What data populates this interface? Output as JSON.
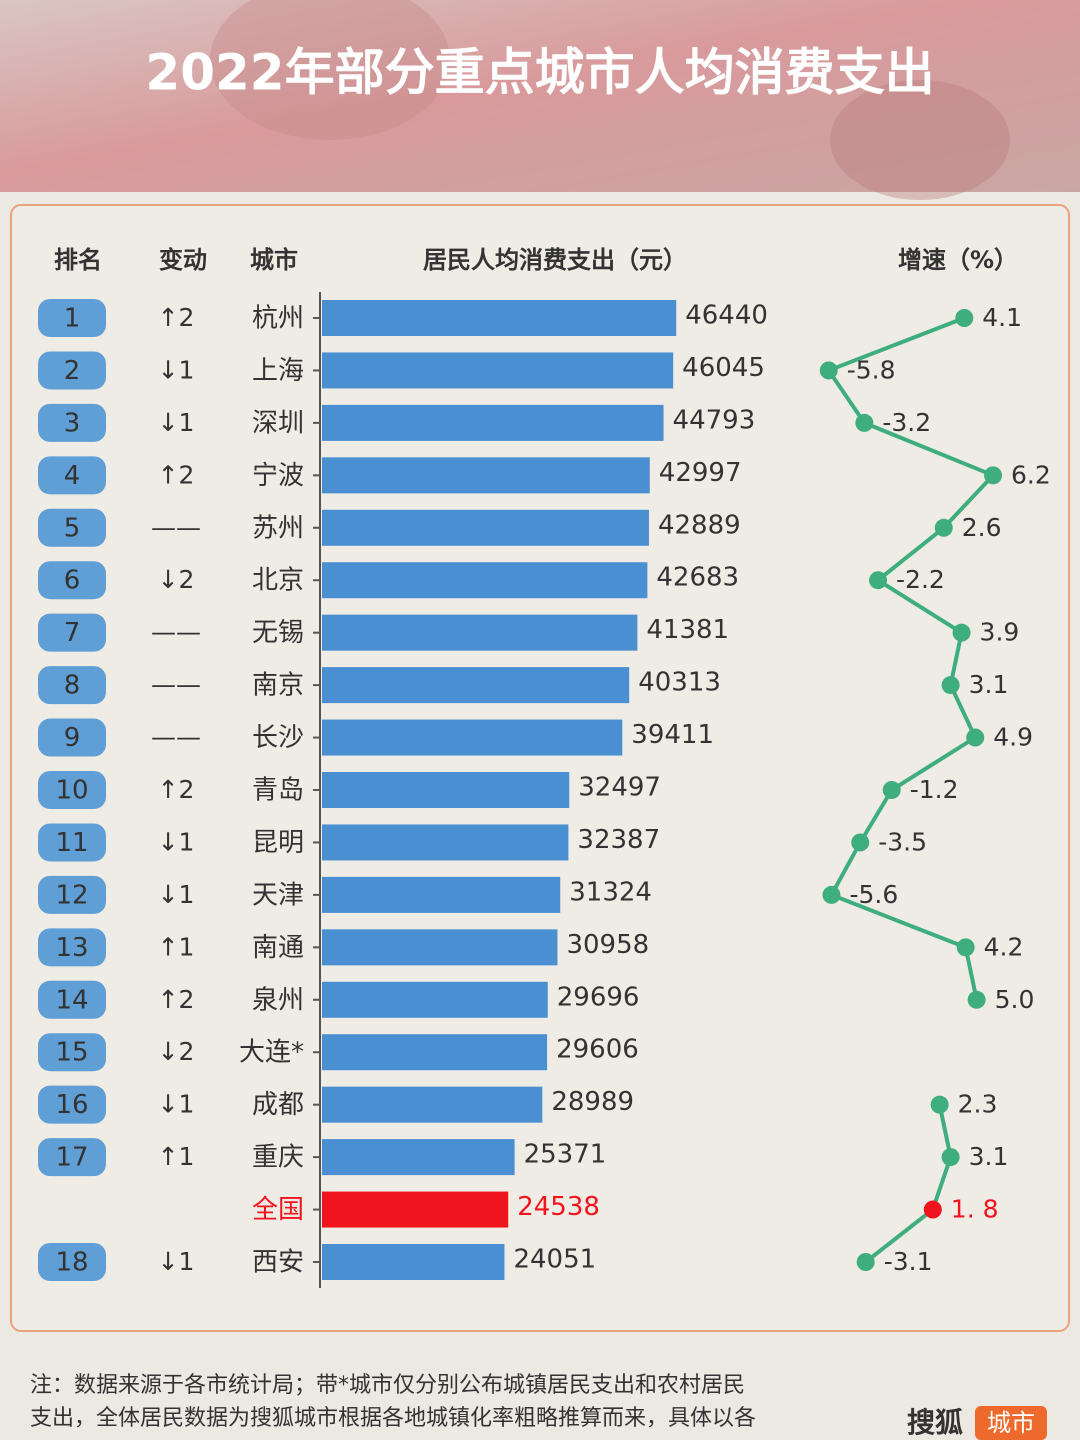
{
  "title": "2022年部分重点城市人均消费支出",
  "headers": [
    "排名",
    "变动",
    "城市",
    "居民人均消费支出（元）",
    "增速（%）"
  ],
  "bar_color": "#4a8fd2",
  "highlight_color": "#f0141e",
  "line_color": "#3fae7e",
  "rank_color": "#5f9fd6",
  "value_xlim": [
    0,
    50000
  ],
  "growth_xlim": [
    -6,
    7
  ],
  "rows": [
    {
      "rank": "1",
      "change": "↑2",
      "city": "杭州",
      "value": 46440,
      "growth": 4.1
    },
    {
      "rank": "2",
      "change": "↓1",
      "city": "上海",
      "value": 46045,
      "growth": -5.8
    },
    {
      "rank": "3",
      "change": "↓1",
      "city": "深圳",
      "value": 44793,
      "growth": -3.2
    },
    {
      "rank": "4",
      "change": "↑2",
      "city": "宁波",
      "value": 42997,
      "growth": 6.2
    },
    {
      "rank": "5",
      "change": "——",
      "city": "苏州",
      "value": 42889,
      "growth": 2.6
    },
    {
      "rank": "6",
      "change": "↓2",
      "city": "北京",
      "value": 42683,
      "growth": -2.2
    },
    {
      "rank": "7",
      "change": "——",
      "city": "无锡",
      "value": 41381,
      "growth": 3.9
    },
    {
      "rank": "8",
      "change": "——",
      "city": "南京",
      "value": 40313,
      "growth": 3.1
    },
    {
      "rank": "9",
      "change": "——",
      "city": "长沙",
      "value": 39411,
      "growth": 4.9
    },
    {
      "rank": "10",
      "change": "↑2",
      "city": "青岛",
      "value": 32497,
      "growth": -1.2
    },
    {
      "rank": "11",
      "change": "↓1",
      "city": "昆明",
      "value": 32387,
      "growth": -3.5
    },
    {
      "rank": "12",
      "change": "↓1",
      "city": "天津",
      "value": 31324,
      "growth": -5.6
    },
    {
      "rank": "13",
      "change": "↑1",
      "city": "南通",
      "value": 30958,
      "growth": 4.2
    },
    {
      "rank": "14",
      "change": "↑2",
      "city": "泉州",
      "value": 29696,
      "growth": 5.0,
      "growth_label": "5.0"
    },
    {
      "rank": "15",
      "change": "↓2",
      "city": "大连*",
      "value": 29606,
      "growth": null
    },
    {
      "rank": "16",
      "change": "↓1",
      "city": "成都",
      "value": 28989,
      "growth": 2.3
    },
    {
      "rank": "17",
      "change": "↑1",
      "city": "重庆",
      "value": 25371,
      "growth": 3.1
    },
    {
      "rank": null,
      "change": null,
      "city": "全国",
      "value": 24538,
      "growth": 1.8,
      "growth_label": "1. 8",
      "highlight": true
    },
    {
      "rank": "18",
      "change": "↓1",
      "city": "西安",
      "value": 24051,
      "growth": -3.1
    }
  ],
  "footnote": [
    "注：数据来源于各市统计局；带*城市仅分别公布城镇居民支出和农村居民",
    "支出，全体居民数据为搜狐城市根据各地城镇化率粗略推算而来，具体以各"
  ],
  "logo": {
    "brand": "搜狐",
    "badge": "城市"
  }
}
